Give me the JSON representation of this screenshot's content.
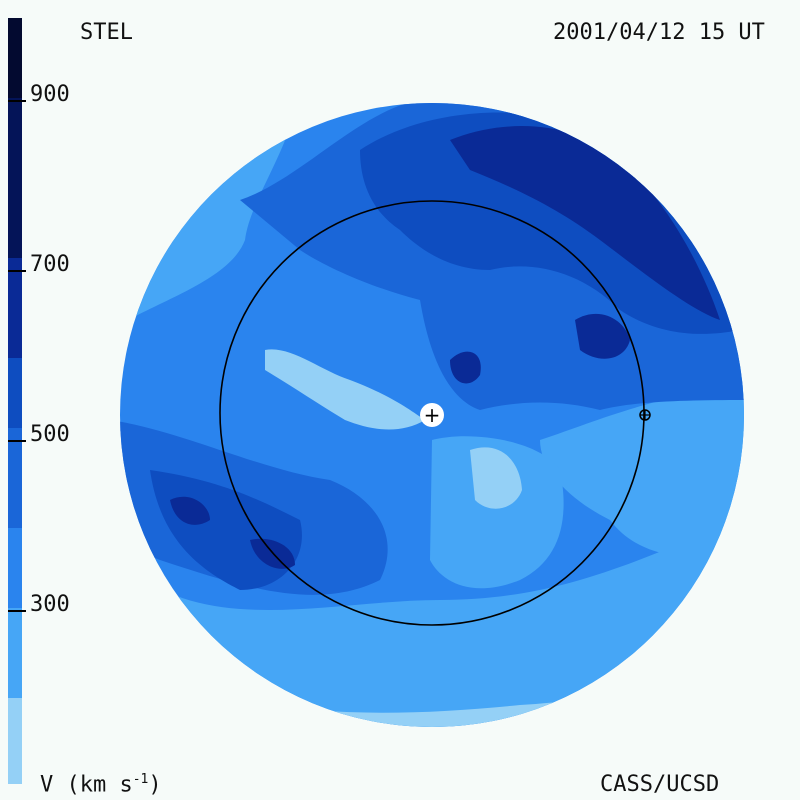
{
  "header": {
    "left": "STEL",
    "right": "2001/04/12 15 UT"
  },
  "footer": {
    "left_prefix": "V (km s",
    "left_exp": "-1",
    "left_suffix": ")",
    "right": "CASS/UCSD"
  },
  "colorbar": {
    "ticks": [
      "900",
      "700",
      "500",
      "300"
    ],
    "bands": [
      "#030a30",
      "#041458",
      "#0a2a96",
      "#0e4dc0",
      "#1a66d8",
      "#2a84ee",
      "#46a6f6",
      "#94d0f6"
    ]
  },
  "map": {
    "colors": {
      "lightest": "#94d0f6",
      "light": "#46a6f6",
      "mid": "#2a84ee",
      "medium": "#1a66d8",
      "dark": "#0e4dc0",
      "darker": "#0a2a96",
      "darkest": "#041458"
    },
    "sun_marker": "+",
    "earth_marker": "earth-symbol"
  }
}
